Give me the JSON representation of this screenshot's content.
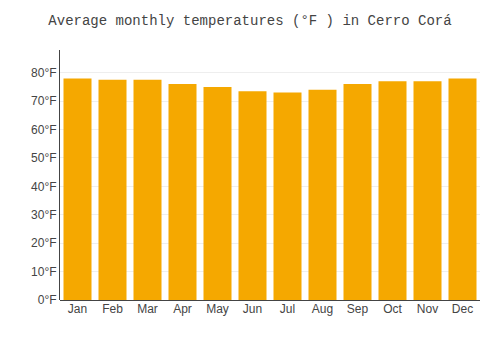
{
  "chart_data": {
    "type": "bar",
    "title": "Average monthly temperatures (°F ) in Cerro Corá",
    "categories": [
      "Jan",
      "Feb",
      "Mar",
      "Apr",
      "May",
      "Jun",
      "Jul",
      "Aug",
      "Sep",
      "Oct",
      "Nov",
      "Dec"
    ],
    "values": [
      78.0,
      77.5,
      77.5,
      76.0,
      75.0,
      73.5,
      73.0,
      74.0,
      76.0,
      77.0,
      77.0,
      78.0
    ],
    "color": "#F5A800",
    "ylim": [
      0,
      88
    ],
    "yticks": [
      {
        "value": 0,
        "label": "0°F"
      },
      {
        "value": 10,
        "label": "10°F"
      },
      {
        "value": 20,
        "label": "20°F"
      },
      {
        "value": 30,
        "label": "30°F"
      },
      {
        "value": 40,
        "label": "40°F"
      },
      {
        "value": 50,
        "label": "50°F"
      },
      {
        "value": 60,
        "label": "60°F"
      },
      {
        "value": 70,
        "label": "70°F"
      },
      {
        "value": 80,
        "label": "80°F"
      }
    ],
    "grid": true
  }
}
